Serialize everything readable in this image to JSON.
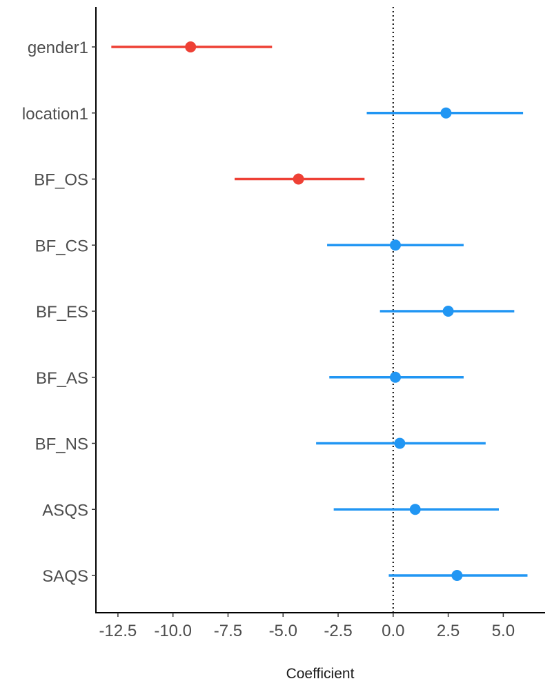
{
  "chart_data": {
    "type": "scatter",
    "subtype": "coefficient-plot",
    "title": "",
    "xlabel": "Coefficient",
    "ylabel": "",
    "xlim": [
      -13.5,
      6.9
    ],
    "x_ticks": [
      -12.5,
      -10.0,
      -7.5,
      -5.0,
      -2.5,
      0.0,
      2.5,
      5.0
    ],
    "x_tick_labels": [
      "-12.5",
      "-10.0",
      "-7.5",
      "-5.0",
      "-2.5",
      "0.0",
      "2.5",
      "5.0"
    ],
    "reference_line": 0,
    "grid": false,
    "legend": "none",
    "colors": {
      "negative": "#EE4035",
      "positive": "#2196F3"
    },
    "terms": [
      {
        "label": "gender1",
        "estimate": -9.2,
        "low": -12.8,
        "high": -5.5,
        "sign": "negative"
      },
      {
        "label": "location1",
        "estimate": 2.4,
        "low": -1.2,
        "high": 5.9,
        "sign": "positive"
      },
      {
        "label": "BF_OS",
        "estimate": -4.3,
        "low": -7.2,
        "high": -1.3,
        "sign": "negative"
      },
      {
        "label": "BF_CS",
        "estimate": 0.1,
        "low": -3.0,
        "high": 3.2,
        "sign": "positive"
      },
      {
        "label": "BF_ES",
        "estimate": 2.5,
        "low": -0.6,
        "high": 5.5,
        "sign": "positive"
      },
      {
        "label": "BF_AS",
        "estimate": 0.1,
        "low": -2.9,
        "high": 3.2,
        "sign": "positive"
      },
      {
        "label": "BF_NS",
        "estimate": 0.3,
        "low": -3.5,
        "high": 4.2,
        "sign": "positive"
      },
      {
        "label": "ASQS",
        "estimate": 1.0,
        "low": -2.7,
        "high": 4.8,
        "sign": "positive"
      },
      {
        "label": "SAQS",
        "estimate": 2.9,
        "low": -0.2,
        "high": 6.1,
        "sign": "positive"
      }
    ]
  }
}
